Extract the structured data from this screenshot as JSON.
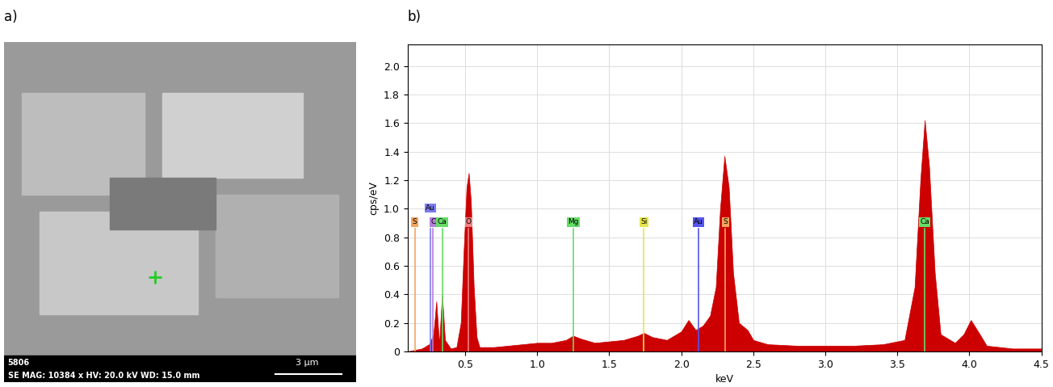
{
  "panel_labels": [
    "a)",
    "b)"
  ],
  "image": {
    "info_line_1": "5806",
    "info_line_2": "SE MAG: 10384 x HV: 20.0 kV WD: 15.0 mm",
    "scale_bar": "3 µm"
  },
  "chart_data": {
    "type": "area",
    "x_label": "keV",
    "y_label": "cps/eV",
    "color": "#cc0000",
    "x": [
      0.1,
      0.15,
      0.2,
      0.25,
      0.28,
      0.3,
      0.32,
      0.34,
      0.36,
      0.4,
      0.44,
      0.47,
      0.49,
      0.51,
      0.525,
      0.54,
      0.56,
      0.58,
      0.6,
      0.7,
      0.8,
      0.9,
      1.0,
      1.1,
      1.2,
      1.25,
      1.3,
      1.4,
      1.5,
      1.6,
      1.7,
      1.74,
      1.8,
      1.9,
      2.0,
      2.05,
      2.1,
      2.15,
      2.2,
      2.24,
      2.27,
      2.3,
      2.33,
      2.36,
      2.4,
      2.46,
      2.5,
      2.6,
      2.8,
      3.0,
      3.2,
      3.4,
      3.55,
      3.62,
      3.66,
      3.69,
      3.72,
      3.76,
      3.8,
      3.9,
      3.96,
      4.01,
      4.06,
      4.12,
      4.3,
      4.5
    ],
    "values": [
      0.0,
      0.01,
      0.02,
      0.05,
      0.12,
      0.35,
      0.05,
      0.4,
      0.08,
      0.02,
      0.03,
      0.2,
      0.7,
      1.15,
      1.25,
      1.05,
      0.45,
      0.1,
      0.03,
      0.03,
      0.04,
      0.05,
      0.06,
      0.06,
      0.08,
      0.11,
      0.09,
      0.06,
      0.07,
      0.08,
      0.11,
      0.13,
      0.1,
      0.08,
      0.14,
      0.22,
      0.15,
      0.18,
      0.25,
      0.45,
      1.0,
      1.37,
      1.15,
      0.55,
      0.2,
      0.15,
      0.08,
      0.05,
      0.04,
      0.04,
      0.04,
      0.05,
      0.08,
      0.45,
      1.2,
      1.62,
      1.3,
      0.55,
      0.12,
      0.06,
      0.12,
      0.22,
      0.14,
      0.04,
      0.02,
      0.02
    ],
    "xlim": [
      0.1,
      4.5
    ],
    "ylim": [
      0,
      2.15
    ],
    "xticks": [
      0.5,
      1.0,
      1.5,
      2.0,
      2.5,
      3.0,
      3.5,
      4.0,
      4.5
    ],
    "yticks": [
      0,
      0.2,
      0.4,
      0.6,
      0.8,
      1.0,
      1.2,
      1.4,
      1.6,
      1.8,
      2.0
    ],
    "grid": true,
    "element_lines": [
      {
        "label": "S",
        "energy": 0.15,
        "color": "#f4a460"
      },
      {
        "label": "C",
        "energy": 0.277,
        "color": "#b57edc"
      },
      {
        "label": "Au",
        "energy": 0.26,
        "color": "#7b7bf0"
      },
      {
        "label": "Ca",
        "energy": 0.341,
        "color": "#66dd66"
      },
      {
        "label": "O",
        "energy": 0.525,
        "color": "#f08080"
      },
      {
        "label": "Mg",
        "energy": 1.253,
        "color": "#66dd66"
      },
      {
        "label": "Si",
        "energy": 1.74,
        "color": "#e6e64c"
      },
      {
        "label": "Au",
        "energy": 2.12,
        "color": "#5555ee"
      },
      {
        "label": "S",
        "energy": 2.307,
        "color": "#f4a460"
      },
      {
        "label": "Ca",
        "energy": 3.69,
        "color": "#66dd66"
      }
    ]
  }
}
